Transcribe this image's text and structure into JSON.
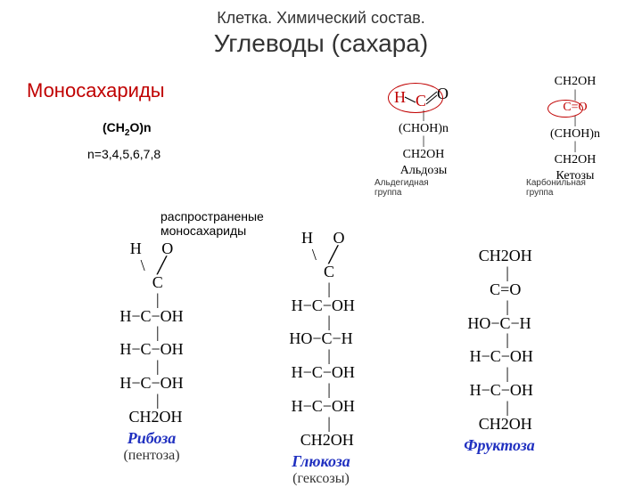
{
  "pretitle": "Клетка. Химический состав.",
  "title": "Углеводы (сахара)",
  "heading": "Моносахариды",
  "formula_html": "(CH<sub>2</sub>O)n",
  "n_values": "n=3,4,5,6,7,8",
  "subheading": "распространеные моносахариды",
  "aldose": {
    "title": "Альдозы",
    "group_label": "Альдегидная группа",
    "top": {
      "H": "H",
      "C": "C",
      "O": "O"
    },
    "lines": [
      "|",
      "(CHOH)n",
      "|",
      "CH2OH"
    ]
  },
  "ketose": {
    "title": "Кетозы",
    "group_label": "Карбонильная группа",
    "lines": [
      "CH2OH",
      "|",
      "C=O",
      "|",
      "(CHOH)n",
      "|",
      "CH2OH"
    ]
  },
  "colors": {
    "highlight": "#c00000",
    "link": "#2030c0",
    "text": "#333333",
    "bg": "#ffffff"
  },
  "ribose": {
    "name": "Рибоза",
    "class": "(пентоза)",
    "lines": [
      "H     O",
      " \\   ╱",
      "   C",
      "   |",
      "H−C−OH",
      "   |",
      "H−C−OH",
      "   |",
      "H−C−OH",
      "   |",
      "  CH2OH"
    ]
  },
  "glucose": {
    "name": "Глюкоза",
    "class": "(гексозы)",
    "lines": [
      " H     O",
      "  \\   ╱",
      "    C",
      "    |",
      " H−C−OH",
      "    |",
      "HO−C−H",
      "    |",
      " H−C−OH",
      "    |",
      " H−C−OH",
      "    |",
      "   CH2OH"
    ]
  },
  "fructose": {
    "name": "Фруктоза",
    "class": "",
    "lines": [
      "   CH2OH",
      "    |",
      "   C=O",
      "    |",
      "HO−C−H",
      "    |",
      " H−C−OH",
      "    |",
      " H−C−OH",
      "    |",
      "   CH2OH"
    ]
  }
}
